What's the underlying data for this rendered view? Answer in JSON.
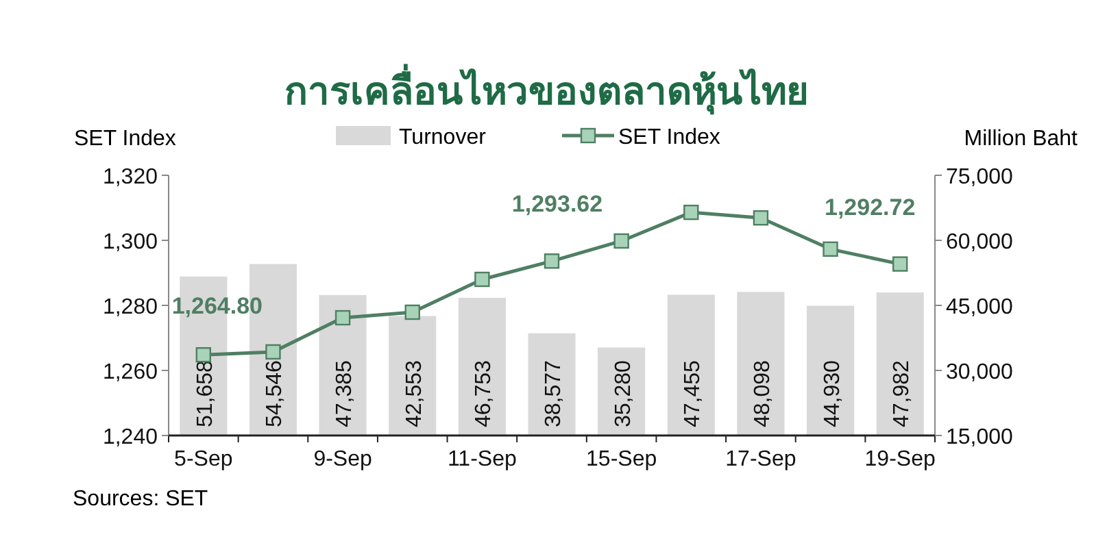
{
  "chart_data": {
    "type": "bar",
    "title": "การเคลื่อนไหวของตลาดหุ้นไทย",
    "categories": [
      "5-Sep",
      null,
      "9-Sep",
      null,
      "11-Sep",
      null,
      "15-Sep",
      null,
      "17-Sep",
      null,
      "19-Sep"
    ],
    "series": [
      {
        "name": "Turnover",
        "axis": "y2",
        "color": "#d9d9d9",
        "values": [
          51658,
          54546,
          47385,
          42553,
          46753,
          38577,
          35280,
          47455,
          48098,
          44930,
          47982
        ],
        "value_labels": [
          "51,658",
          "54,546",
          "47,385",
          "42,553",
          "46,753",
          "38,577",
          "35,280",
          "47,455",
          "48,098",
          "44,930",
          "47,982"
        ]
      },
      {
        "name": "SET Index",
        "type": "line",
        "axis": "y",
        "color": "#4f7f63",
        "marker": "square",
        "values": [
          1264.8,
          1265.7,
          1276.2,
          1277.9,
          1288.0,
          1293.62,
          1299.8,
          1308.6,
          1306.9,
          1297.3,
          1292.72
        ],
        "value_labels": [
          "1,264.80",
          null,
          null,
          null,
          null,
          "1,293.62",
          null,
          null,
          null,
          null,
          "1,292.72"
        ]
      }
    ],
    "ylabel": "SET Index",
    "y2label": "Million Baht",
    "ylim": [
      1240,
      1320
    ],
    "yticks": [
      {
        "value": 1240,
        "label": "1,240"
      },
      {
        "value": 1260,
        "label": "1,260"
      },
      {
        "value": 1280,
        "label": "1,280"
      },
      {
        "value": 1300,
        "label": "1,300"
      },
      {
        "value": 1320,
        "label": "1,320"
      }
    ],
    "y2lim": [
      15000,
      75000
    ],
    "y2ticks": [
      {
        "value": 15000,
        "label": "15,000"
      },
      {
        "value": 30000,
        "label": "30,000"
      },
      {
        "value": 45000,
        "label": "45,000"
      },
      {
        "value": 60000,
        "label": "60,000"
      },
      {
        "value": 75000,
        "label": "75,000"
      }
    ],
    "legend": "top",
    "grid": false,
    "annotations": [
      "Sources: SET"
    ]
  }
}
